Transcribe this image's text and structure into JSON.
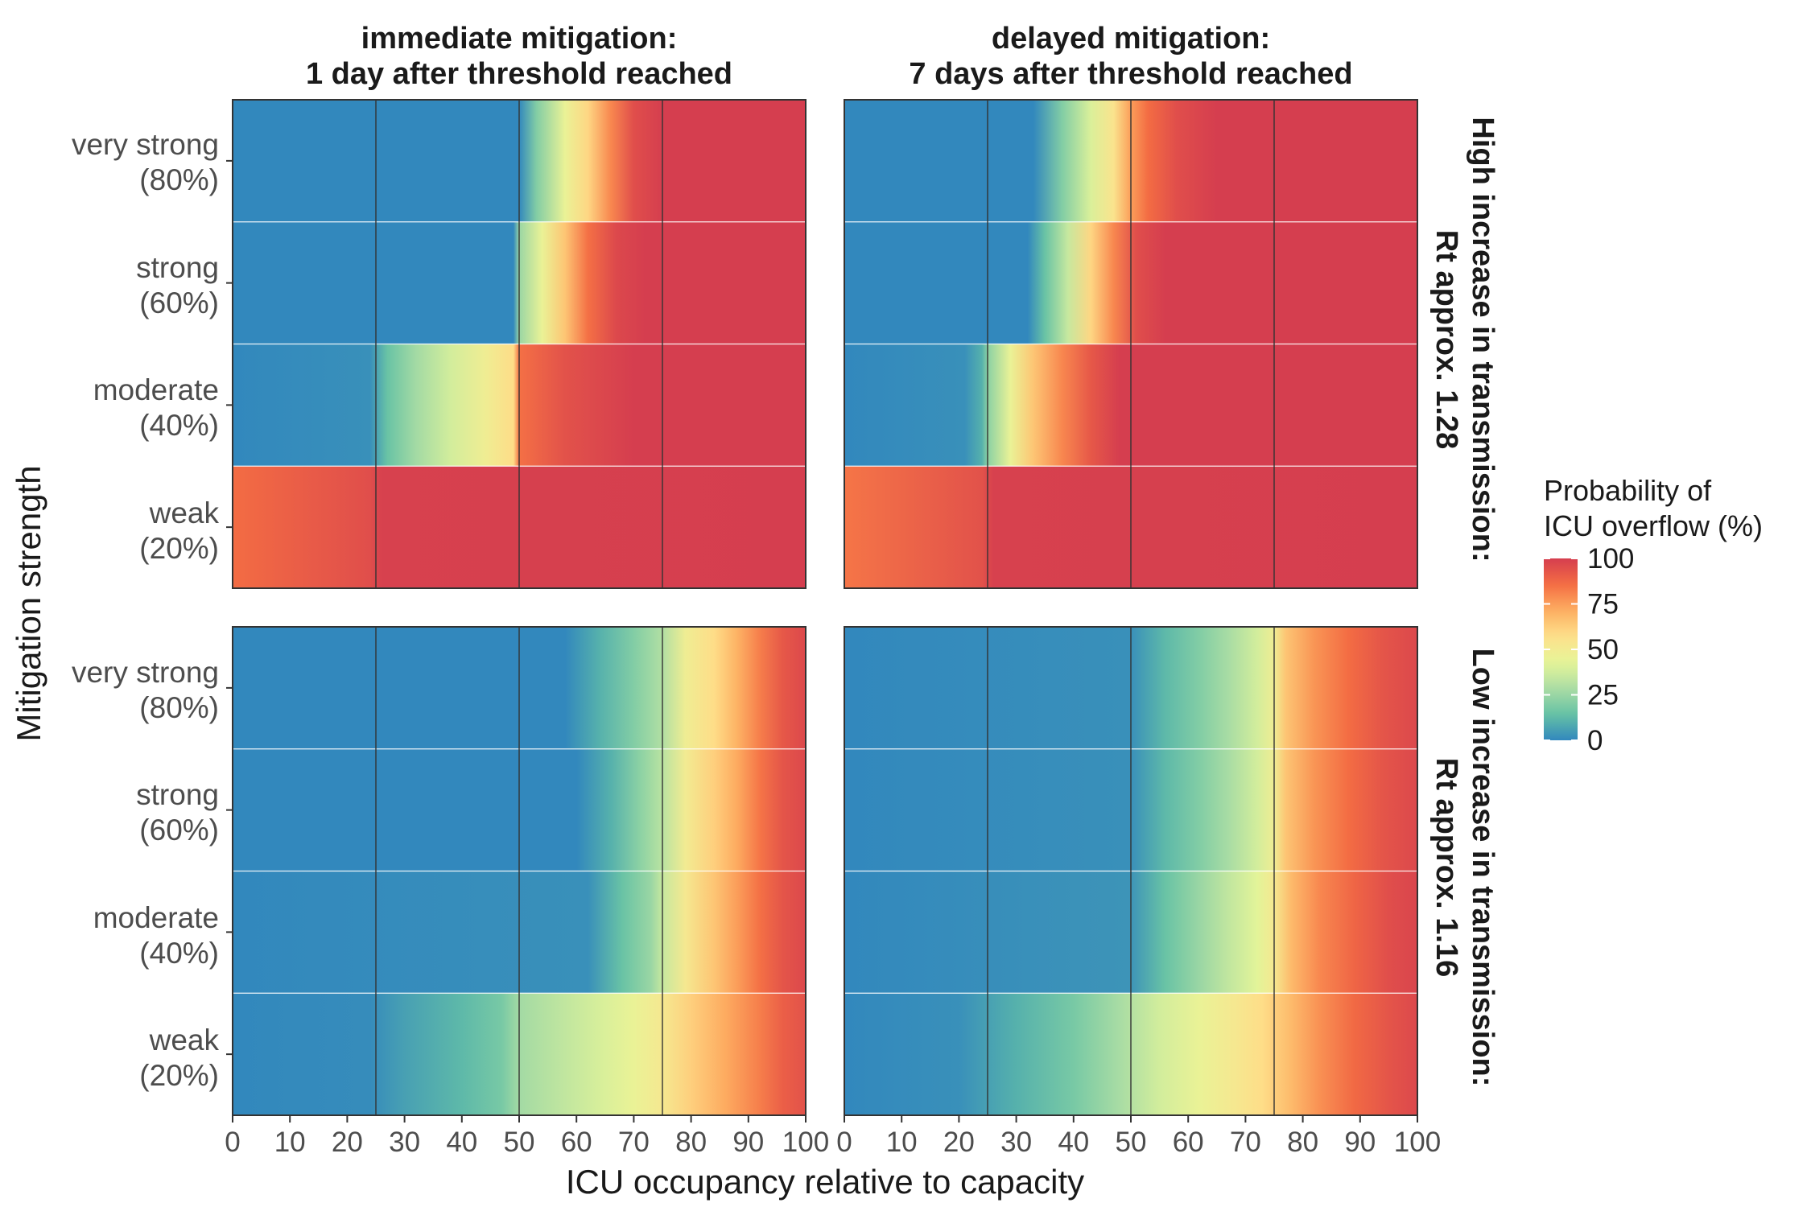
{
  "chart_data": {
    "type": "heatmap",
    "columns": [
      {
        "title_lines": [
          "immediate mitigation:",
          "1 day after threshold reached"
        ]
      },
      {
        "title_lines": [
          "delayed mitigation:",
          "7 days after threshold reached"
        ]
      }
    ],
    "rows": [
      {
        "title_lines": [
          "High increase in transmission:",
          "Rt approx. 1.28"
        ]
      },
      {
        "title_lines": [
          "Low increase in transmission:",
          "Rt approx. 1.16"
        ]
      }
    ],
    "categories": [
      {
        "name": "very strong",
        "pct": "(80%)"
      },
      {
        "name": "strong",
        "pct": "(60%)"
      },
      {
        "name": "moderate",
        "pct": "(40%)"
      },
      {
        "name": "weak",
        "pct": "(20%)"
      }
    ],
    "x_ticks": [
      0,
      10,
      20,
      30,
      40,
      50,
      60,
      70,
      80,
      90,
      100
    ],
    "x_range": [
      0,
      100
    ],
    "vlines": [
      25,
      50,
      75
    ],
    "xlabel": "ICU occupancy relative to capacity",
    "ylabel": "Mitigation strength",
    "legend": {
      "title_lines": [
        "Probability of",
        "ICU overflow (%)"
      ],
      "ticks": [
        0,
        25,
        50,
        75,
        100
      ],
      "range": [
        0,
        100
      ],
      "colors": [
        "#3288bd",
        "#66c2a5",
        "#abdda4",
        "#e6f598",
        "#fee08b",
        "#fdae61",
        "#f46d43",
        "#d53e4f"
      ]
    },
    "series": [
      {
        "name": "High increase / immediate mitigation",
        "rows": [
          [
            [
              0,
              0
            ],
            [
              50,
              0
            ],
            [
              53,
              20
            ],
            [
              58,
              45
            ],
            [
              62,
              60
            ],
            [
              66,
              80
            ],
            [
              70,
              95
            ],
            [
              75,
              100
            ],
            [
              100,
              100
            ]
          ],
          [
            [
              0,
              0
            ],
            [
              49,
              0
            ],
            [
              50,
              25
            ],
            [
              54,
              45
            ],
            [
              58,
              65
            ],
            [
              62,
              85
            ],
            [
              67,
              97
            ],
            [
              72,
              100
            ],
            [
              100,
              100
            ]
          ],
          [
            [
              0,
              0
            ],
            [
              24,
              2
            ],
            [
              27,
              15
            ],
            [
              32,
              27
            ],
            [
              38,
              38
            ],
            [
              44,
              48
            ],
            [
              49,
              58
            ],
            [
              50,
              85
            ],
            [
              58,
              94
            ],
            [
              70,
              100
            ],
            [
              100,
              100
            ]
          ],
          [
            [
              0,
              86
            ],
            [
              24,
              95
            ],
            [
              26,
              99
            ],
            [
              100,
              100
            ]
          ]
        ]
      },
      {
        "name": "High increase / delayed mitigation",
        "rows": [
          [
            [
              0,
              0
            ],
            [
              33,
              0
            ],
            [
              38,
              20
            ],
            [
              43,
              40
            ],
            [
              47,
              55
            ],
            [
              50,
              75
            ],
            [
              53,
              86
            ],
            [
              58,
              95
            ],
            [
              65,
              100
            ],
            [
              100,
              100
            ]
          ],
          [
            [
              0,
              0
            ],
            [
              32,
              0
            ],
            [
              35,
              15
            ],
            [
              39,
              35
            ],
            [
              43,
              60
            ],
            [
              47,
              80
            ],
            [
              51,
              95
            ],
            [
              56,
              100
            ],
            [
              100,
              100
            ]
          ],
          [
            [
              0,
              0
            ],
            [
              21,
              2
            ],
            [
              24,
              10
            ],
            [
              25,
              22
            ],
            [
              29,
              45
            ],
            [
              33,
              65
            ],
            [
              38,
              80
            ],
            [
              43,
              92
            ],
            [
              48,
              100
            ],
            [
              100,
              100
            ]
          ],
          [
            [
              0,
              84
            ],
            [
              24,
              94
            ],
            [
              26,
              99
            ],
            [
              100,
              100
            ]
          ]
        ]
      },
      {
        "name": "Low increase / immediate mitigation",
        "rows": [
          [
            [
              0,
              0
            ],
            [
              58,
              0
            ],
            [
              64,
              10
            ],
            [
              70,
              20
            ],
            [
              75,
              30
            ],
            [
              79,
              48
            ],
            [
              84,
              58
            ],
            [
              88,
              70
            ],
            [
              92,
              82
            ],
            [
              96,
              92
            ],
            [
              100,
              97
            ]
          ],
          [
            [
              0,
              0
            ],
            [
              60,
              0
            ],
            [
              66,
              10
            ],
            [
              71,
              22
            ],
            [
              75,
              32
            ],
            [
              79,
              50
            ],
            [
              84,
              62
            ],
            [
              88,
              72
            ],
            [
              92,
              84
            ],
            [
              96,
              93
            ],
            [
              100,
              97
            ]
          ],
          [
            [
              0,
              0
            ],
            [
              62,
              2
            ],
            [
              68,
              15
            ],
            [
              73,
              25
            ],
            [
              75,
              35
            ],
            [
              79,
              52
            ],
            [
              84,
              65
            ],
            [
              88,
              75
            ],
            [
              92,
              85
            ],
            [
              96,
              93
            ],
            [
              100,
              97
            ]
          ],
          [
            [
              0,
              0
            ],
            [
              24,
              1
            ],
            [
              30,
              6
            ],
            [
              40,
              12
            ],
            [
              47,
              18
            ],
            [
              50,
              27
            ],
            [
              58,
              34
            ],
            [
              65,
              40
            ],
            [
              70,
              45
            ],
            [
              75,
              52
            ],
            [
              80,
              62
            ],
            [
              86,
              72
            ],
            [
              92,
              82
            ],
            [
              96,
              90
            ],
            [
              100,
              94
            ]
          ]
        ]
      },
      {
        "name": "Low increase / delayed mitigation",
        "rows": [
          [
            [
              0,
              0
            ],
            [
              50,
              2
            ],
            [
              56,
              12
            ],
            [
              62,
              20
            ],
            [
              67,
              28
            ],
            [
              72,
              38
            ],
            [
              75,
              48
            ],
            [
              77,
              65
            ],
            [
              82,
              77
            ],
            [
              88,
              86
            ],
            [
              94,
              93
            ],
            [
              100,
              97
            ]
          ],
          [
            [
              0,
              0
            ],
            [
              50,
              2
            ],
            [
              56,
              12
            ],
            [
              62,
              20
            ],
            [
              67,
              28
            ],
            [
              72,
              38
            ],
            [
              75,
              48
            ],
            [
              77,
              65
            ],
            [
              82,
              77
            ],
            [
              88,
              86
            ],
            [
              94,
              93
            ],
            [
              100,
              97
            ]
          ],
          [
            [
              0,
              0
            ],
            [
              50,
              3
            ],
            [
              56,
              15
            ],
            [
              62,
              25
            ],
            [
              67,
              34
            ],
            [
              72,
              42
            ],
            [
              75,
              52
            ],
            [
              78,
              68
            ],
            [
              83,
              80
            ],
            [
              89,
              88
            ],
            [
              95,
              95
            ],
            [
              100,
              98
            ]
          ],
          [
            [
              0,
              0
            ],
            [
              20,
              2
            ],
            [
              30,
              10
            ],
            [
              40,
              18
            ],
            [
              48,
              28
            ],
            [
              55,
              38
            ],
            [
              62,
              45
            ],
            [
              68,
              52
            ],
            [
              73,
              58
            ],
            [
              78,
              68
            ],
            [
              83,
              78
            ],
            [
              89,
              87
            ],
            [
              95,
              93
            ],
            [
              100,
              97
            ]
          ]
        ]
      }
    ]
  }
}
